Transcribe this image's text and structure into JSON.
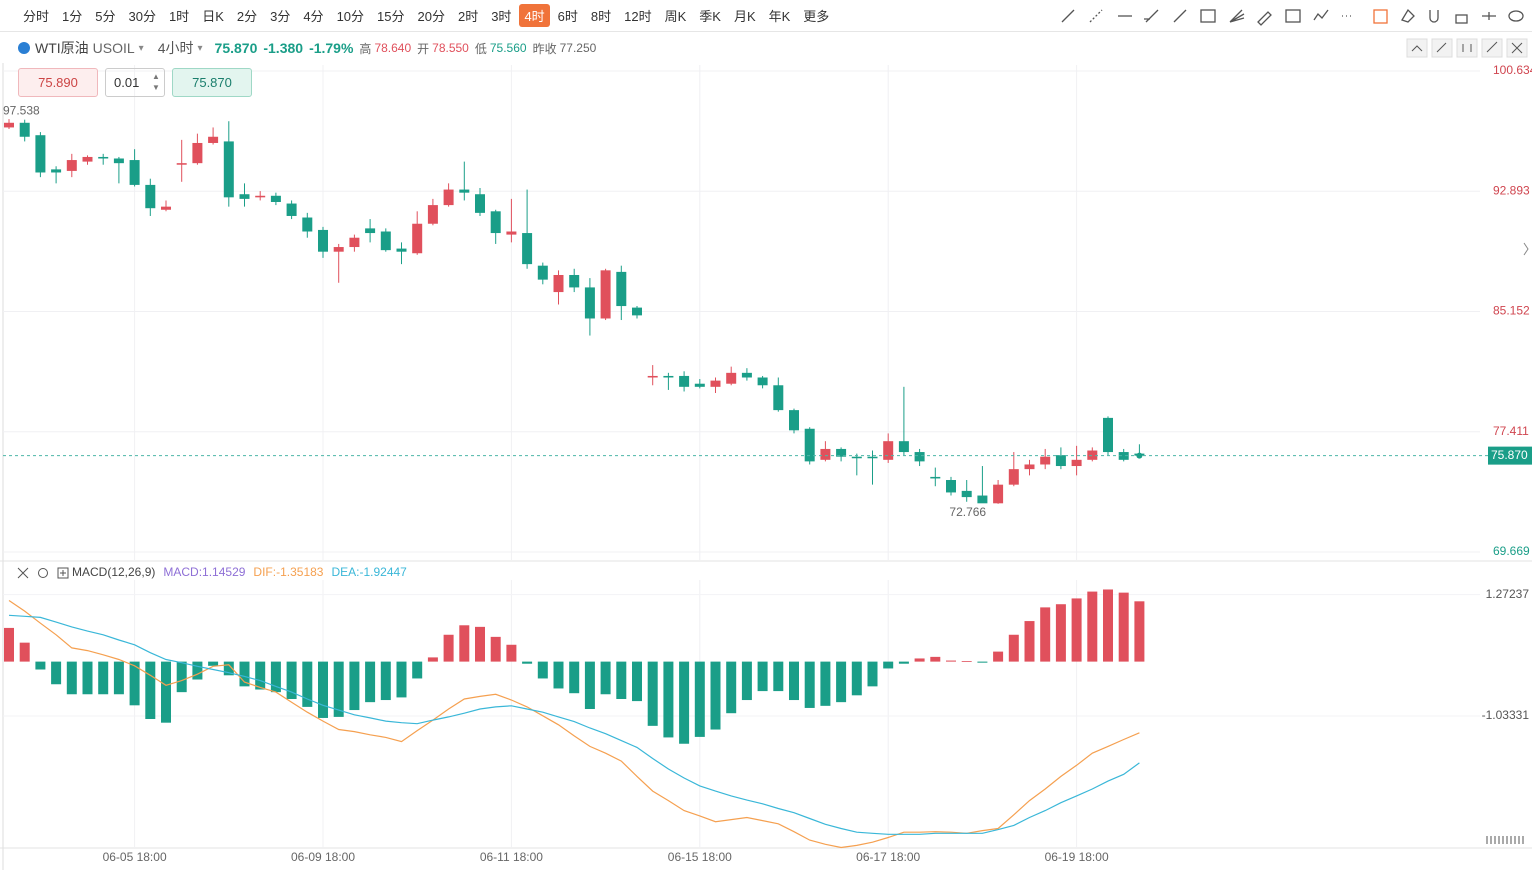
{
  "toolbar": {
    "intervals": [
      "分时",
      "1分",
      "5分",
      "30分",
      "1时",
      "日K",
      "2分",
      "3分",
      "4分",
      "10分",
      "15分",
      "20分",
      "2时",
      "3时",
      "4时",
      "6时",
      "8时",
      "12时",
      "周K",
      "季K",
      "月K",
      "年K",
      "更多"
    ]
  },
  "header": {
    "name": "WTI原油",
    "symbol": "USOIL",
    "period": "4小时",
    "price": "75.870",
    "change": "-1.380",
    "change_pct": "-1.79%",
    "high_label": "高",
    "high": "78.640",
    "open_label": "开",
    "open": "78.550",
    "low_label": "低",
    "low": "75.560",
    "prev_label": "昨收",
    "prev": "77.250"
  },
  "order": {
    "sell": "75.890",
    "qty": "0.01",
    "buy": "75.870"
  },
  "chart_data": [
    {
      "type": "candlestick",
      "up_color": "#e0505c",
      "down_color": "#1a9e88",
      "categories": [
        null,
        null,
        null,
        null,
        null,
        null,
        null,
        null,
        "06-05 18:00",
        null,
        null,
        null,
        null,
        null,
        null,
        null,
        null,
        null,
        null,
        null,
        "06-09 18:00",
        null,
        null,
        null,
        null,
        null,
        null,
        null,
        null,
        null,
        null,
        null,
        "06-11 18:00",
        null,
        null,
        null,
        null,
        null,
        null,
        null,
        null,
        null,
        null,
        null,
        "06-15 18:00",
        null,
        null,
        null,
        null,
        null,
        null,
        null,
        null,
        null,
        null,
        null,
        "06-17 18:00",
        null,
        null,
        null,
        null,
        null,
        null,
        null,
        null,
        null,
        null,
        null,
        "06-19 18:00",
        null,
        null,
        null,
        null
      ],
      "open": [
        97.0,
        97.3,
        96.5,
        94.3,
        94.2,
        94.8,
        95.1,
        95.0,
        94.9,
        93.3,
        91.7,
        94.6,
        94.7,
        96.0,
        96.1,
        92.7,
        92.5,
        92.6,
        92.1,
        91.2,
        90.4,
        89.0,
        89.3,
        90.5,
        90.3,
        89.2,
        88.9,
        90.8,
        92.0,
        93.0,
        92.7,
        91.6,
        90.1,
        90.2,
        88.1,
        86.4,
        87.5,
        86.7,
        84.7,
        87.7,
        85.4,
        80.9,
        81.0,
        81.0,
        80.5,
        80.3,
        80.5,
        81.2,
        80.9,
        80.4,
        78.8,
        77.6,
        75.6,
        76.3,
        75.8,
        75.8,
        75.6,
        76.8,
        76.1,
        74.5,
        74.3,
        73.6,
        73.3,
        72.8,
        74.0,
        75.0,
        75.3,
        75.9,
        75.2,
        75.6,
        78.3,
        76.1,
        76.0
      ],
      "high": [
        97.538,
        97.5,
        96.7,
        94.5,
        95.3,
        95.2,
        95.3,
        95.1,
        95.6,
        93.7,
        92.3,
        96.2,
        96.6,
        97.0,
        97.4,
        93.4,
        92.9,
        92.8,
        92.3,
        91.5,
        90.6,
        89.5,
        90.1,
        91.1,
        90.5,
        89.6,
        91.6,
        92.4,
        93.4,
        94.8,
        93.1,
        91.7,
        92.4,
        93.0,
        88.3,
        87.8,
        87.9,
        87.3,
        87.9,
        88.1,
        85.5,
        81.7,
        81.2,
        81.3,
        80.8,
        80.9,
        81.6,
        81.5,
        81.0,
        80.9,
        78.9,
        77.7,
        76.8,
        76.4,
        76.0,
        76.2,
        77.3,
        80.3,
        76.3,
        75.1,
        74.5,
        74.3,
        75.2,
        74.3,
        76.1,
        75.6,
        76.3,
        76.4,
        76.5,
        76.4,
        78.4,
        76.3,
        76.6
      ],
      "low": [
        96.9,
        96.1,
        93.8,
        93.4,
        93.8,
        94.6,
        94.6,
        93.4,
        93.2,
        91.3,
        91.6,
        93.5,
        94.6,
        95.9,
        91.9,
        91.9,
        92.3,
        92.0,
        91.1,
        89.9,
        88.6,
        87.0,
        89.0,
        89.6,
        89.0,
        88.2,
        88.8,
        90.7,
        91.9,
        92.3,
        91.3,
        89.5,
        89.6,
        87.9,
        86.9,
        85.6,
        86.4,
        83.6,
        84.6,
        84.6,
        84.7,
        80.4,
        80.1,
        80.0,
        80.2,
        79.9,
        80.4,
        80.7,
        80.2,
        78.7,
        77.3,
        75.3,
        75.5,
        75.5,
        74.6,
        74.0,
        75.4,
        75.9,
        75.2,
        73.9,
        73.3,
        72.9,
        72.9,
        72.766,
        73.9,
        74.6,
        75.0,
        75.0,
        74.6,
        75.5,
        75.9,
        75.5,
        75.7
      ],
      "close": [
        97.3,
        96.4,
        94.1,
        94.1,
        94.9,
        95.1,
        95.0,
        94.7,
        93.3,
        91.8,
        91.9,
        94.7,
        96.0,
        96.4,
        92.5,
        92.4,
        92.6,
        92.2,
        91.3,
        90.3,
        89.0,
        89.3,
        89.9,
        90.2,
        89.1,
        89.0,
        90.8,
        92.0,
        93.0,
        92.8,
        91.5,
        90.2,
        90.3,
        88.2,
        87.2,
        87.5,
        86.7,
        84.7,
        87.8,
        85.5,
        84.9,
        81.0,
        80.9,
        80.3,
        80.3,
        80.7,
        81.2,
        80.9,
        80.4,
        78.8,
        77.5,
        75.5,
        76.3,
        75.8,
        75.7,
        75.7,
        76.8,
        76.1,
        75.5,
        74.4,
        73.5,
        73.2,
        72.8,
        74.0,
        75.0,
        75.3,
        75.8,
        75.2,
        75.6,
        76.2,
        76.1,
        75.6,
        75.87
      ],
      "last_tick": {
        "value": 75.87,
        "label": "75.870"
      },
      "ylim": [
        69.15,
        101.02
      ],
      "yticks": [
        100.634,
        92.893,
        85.152,
        77.411,
        69.669
      ],
      "grid": true
    },
    {
      "type": "combo",
      "title": "MACD(12,26,9)",
      "ylim": [
        -3.54,
        1.55
      ],
      "yticks": [
        1.27237,
        -1.03331
      ],
      "grid": true,
      "series": [
        {
          "name": "MACD:1.14529",
          "kind": "bar",
          "color": "#8e6fd6",
          "up_color": "#e0505c",
          "down_color": "#1a9e88",
          "values": [
            0.64,
            0.36,
            -0.15,
            -0.43,
            -0.62,
            -0.62,
            -0.62,
            -0.62,
            -0.83,
            -1.09,
            -1.16,
            -0.58,
            -0.34,
            -0.08,
            -0.26,
            -0.47,
            -0.53,
            -0.58,
            -0.71,
            -0.86,
            -1.07,
            -1.05,
            -0.92,
            -0.77,
            -0.73,
            -0.68,
            -0.32,
            0.08,
            0.51,
            0.69,
            0.66,
            0.47,
            0.32,
            -0.04,
            -0.32,
            -0.51,
            -0.6,
            -0.9,
            -0.62,
            -0.71,
            -0.75,
            -1.22,
            -1.44,
            -1.56,
            -1.43,
            -1.29,
            -0.98,
            -0.73,
            -0.56,
            -0.56,
            -0.73,
            -0.88,
            -0.84,
            -0.77,
            -0.64,
            -0.47,
            -0.13,
            -0.04,
            0.06,
            0.09,
            0.02,
            0.01,
            -0.02,
            0.19,
            0.51,
            0.77,
            1.03,
            1.09,
            1.2,
            1.33,
            1.37,
            1.31,
            1.14529
          ]
        },
        {
          "name": "DIF:-1.35183",
          "kind": "line",
          "color": "#f5a050",
          "values": [
            1.16,
            0.96,
            0.73,
            0.51,
            0.26,
            0.21,
            0.13,
            0.04,
            -0.08,
            -0.26,
            -0.45,
            -0.36,
            -0.24,
            -0.09,
            -0.06,
            -0.39,
            -0.49,
            -0.58,
            -0.77,
            -0.96,
            -1.13,
            -1.29,
            -1.33,
            -1.39,
            -1.44,
            -1.52,
            -1.31,
            -1.11,
            -0.9,
            -0.71,
            -0.66,
            -0.62,
            -0.73,
            -0.86,
            -1.03,
            -1.2,
            -1.41,
            -1.61,
            -1.74,
            -1.89,
            -2.18,
            -2.46,
            -2.64,
            -2.83,
            -2.93,
            -3.04,
            -3.0,
            -2.96,
            -3.02,
            -3.08,
            -3.23,
            -3.39,
            -3.47,
            -3.53,
            -3.49,
            -3.43,
            -3.34,
            -3.24,
            -3.24,
            -3.23,
            -3.24,
            -3.26,
            -3.21,
            -3.17,
            -2.91,
            -2.64,
            -2.42,
            -2.18,
            -1.97,
            -1.74,
            -1.61,
            -1.48,
            -1.35183
          ]
        },
        {
          "name": "DEA:-1.92447",
          "kind": "line",
          "color": "#3ab7d8",
          "values": [
            0.88,
            0.86,
            0.84,
            0.75,
            0.66,
            0.58,
            0.51,
            0.41,
            0.32,
            0.17,
            0.04,
            -0.02,
            -0.09,
            -0.15,
            -0.21,
            -0.28,
            -0.36,
            -0.47,
            -0.58,
            -0.71,
            -0.83,
            -0.92,
            -1.01,
            -1.07,
            -1.13,
            -1.16,
            -1.18,
            -1.11,
            -1.05,
            -0.98,
            -0.9,
            -0.86,
            -0.84,
            -0.9,
            -0.96,
            -1.05,
            -1.14,
            -1.26,
            -1.37,
            -1.5,
            -1.63,
            -1.84,
            -2.04,
            -2.21,
            -2.36,
            -2.46,
            -2.55,
            -2.63,
            -2.7,
            -2.79,
            -2.87,
            -2.98,
            -3.09,
            -3.17,
            -3.24,
            -3.26,
            -3.28,
            -3.28,
            -3.28,
            -3.26,
            -3.26,
            -3.26,
            -3.26,
            -3.19,
            -3.11,
            -2.96,
            -2.83,
            -2.68,
            -2.55,
            -2.42,
            -2.27,
            -2.14,
            -1.92447
          ]
        }
      ]
    }
  ]
}
